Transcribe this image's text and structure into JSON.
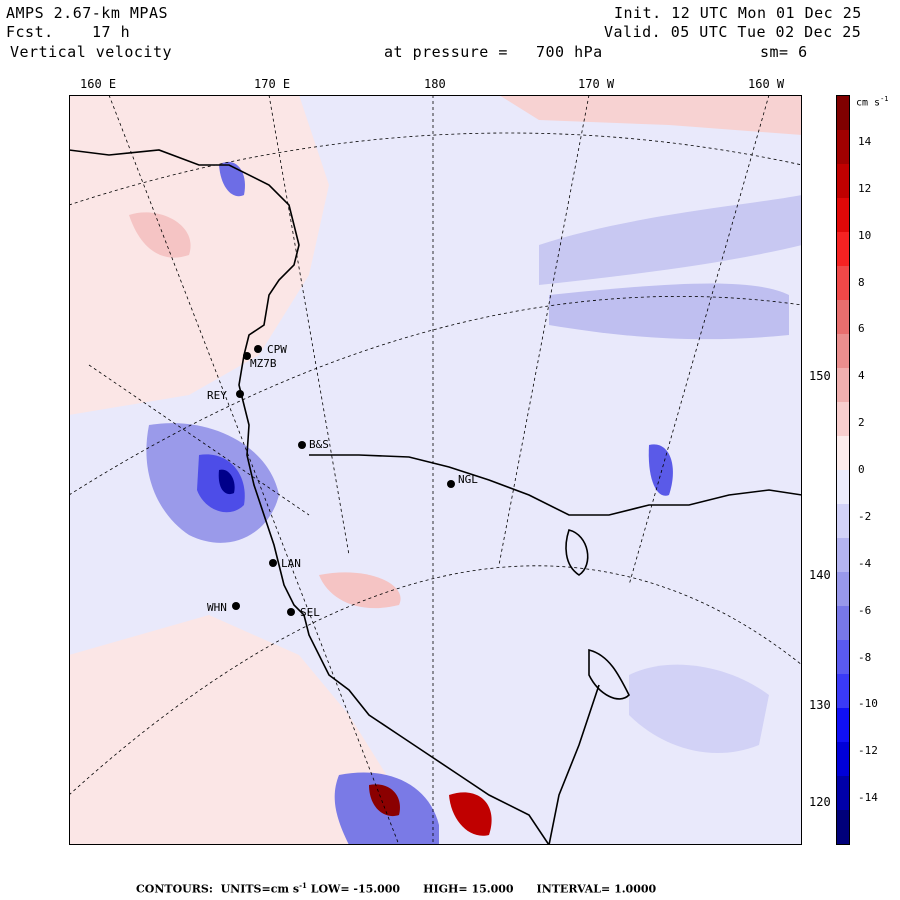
{
  "header": {
    "model": "AMPS 2.67-km MPAS",
    "forecast_label": "Fcst.",
    "forecast_value": "17 h",
    "field": "Vertical velocity",
    "init": "Init. 12 UTC Mon 01 Dec 25",
    "valid": "Valid. 05 UTC Tue 02 Dec 25",
    "pressure_label": "at pressure =",
    "pressure_value": "700 hPa",
    "smoothing": "sm= 6"
  },
  "longitude_labels": [
    "160 E",
    "170 E",
    "180",
    "170 W",
    "160 W"
  ],
  "latitude_labels": [
    "150 W",
    "140 W",
    "130 W",
    "120 W"
  ],
  "stations": [
    "CPW",
    "MZ7B",
    "REY",
    "B&S",
    "NGL",
    "LAN",
    "WHN",
    "SEL"
  ],
  "colorbar": {
    "units_label": "cm s",
    "units_exp": "-1",
    "tick_labels": [
      "14",
      "12",
      "10",
      "8",
      "6",
      "4",
      "2",
      "0",
      "-2",
      "-4",
      "-6",
      "-8",
      "-10",
      "-12",
      "-14"
    ],
    "colors": [
      "#00007a",
      "#0000a8",
      "#0000d8",
      "#1010f5",
      "#3a3af7",
      "#5a5af0",
      "#7878e8",
      "#9898ea",
      "#b4b4f0",
      "#d2d2f8",
      "#ececfc",
      "#fcecec",
      "#f8cece",
      "#f0afaf",
      "#ea8e8e",
      "#e86e6e",
      "#f04848",
      "#f52222",
      "#e00808",
      "#c00000",
      "#a00000",
      "#800000"
    ]
  },
  "footer": {
    "contours_label": "CONTOURS:",
    "units": "UNITS=cm s",
    "units_exp": "-1",
    "low": "LOW= -15.000",
    "high": "HIGH= 15.000",
    "interval": "INTERVAL= 1.0000"
  }
}
